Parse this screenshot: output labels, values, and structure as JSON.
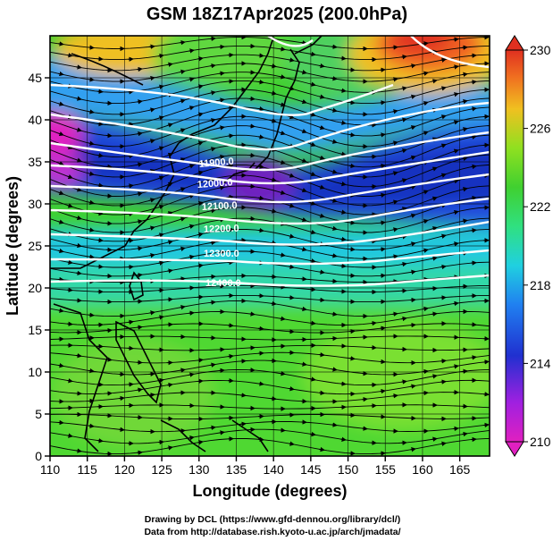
{
  "title": "GSM 18Z17Apr2025 (200.0hPa)",
  "axes": {
    "xlabel": "Longitude (degrees)",
    "ylabel": "Latitude  (degrees)",
    "x_ticks": [
      "110",
      "115",
      "120",
      "125",
      "130",
      "135",
      "140",
      "145",
      "150",
      "155",
      "160",
      "165"
    ],
    "y_ticks": [
      "0",
      "5",
      "10",
      "15",
      "20",
      "25",
      "30",
      "35",
      "40",
      "45"
    ],
    "xlim": [
      110,
      169
    ],
    "ylim": [
      0,
      50
    ]
  },
  "colorbar": {
    "labels": [
      "230",
      "226",
      "222",
      "218",
      "214",
      "210"
    ],
    "range": [
      210,
      230
    ],
    "unit_note": ""
  },
  "contours": [
    {
      "label": "11900.0"
    },
    {
      "label": "12000.0"
    },
    {
      "label": "12100.0"
    },
    {
      "label": "12200.0"
    },
    {
      "label": "12300.0"
    },
    {
      "label": "12400.0"
    }
  ],
  "footer": {
    "line1": "Drawing by DCL (https://www.gfd-dennou.org/library/dcl/)",
    "line2": "Data from http://database.rish.kyoto-u.ac.jp/arch/jmadata/"
  },
  "colors": {
    "scale_low": "#e020c0",
    "scale_mid_low": "#2040e0",
    "scale_mid": "#20d0e0",
    "scale_mid_high": "#30d030",
    "scale_high": "#e04020",
    "contour": "#ffffff"
  }
}
